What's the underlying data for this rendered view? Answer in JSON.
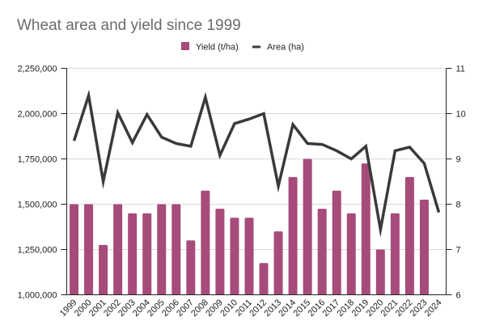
{
  "chart_data": {
    "type": "bar",
    "title": "Wheat area and yield since 1999",
    "categories": [
      "1999",
      "2000",
      "2001",
      "2002",
      "2003",
      "2004",
      "2005",
      "2006",
      "2007",
      "2008",
      "2009",
      "2010",
      "2011",
      "2012",
      "2013",
      "2014",
      "2015",
      "2016",
      "2017",
      "2018",
      "2019",
      "2020",
      "2021",
      "2022",
      "2023",
      "2024"
    ],
    "series": [
      {
        "name": "Yield (t/ha)",
        "type": "bar",
        "axis": "right",
        "color": "#a64b7a",
        "values": [
          8.0,
          8.0,
          7.1,
          8.0,
          7.8,
          7.8,
          8.0,
          8.0,
          7.2,
          8.3,
          7.9,
          7.7,
          7.7,
          6.7,
          7.4,
          8.6,
          9.0,
          7.9,
          8.3,
          7.8,
          8.9,
          7.0,
          7.8,
          8.6,
          8.1,
          null
        ]
      },
      {
        "name": "Area (ha)",
        "type": "line",
        "axis": "left",
        "color": "#3a3a3a",
        "values": [
          1850000,
          2100000,
          1625000,
          2005000,
          1840000,
          1995000,
          1870000,
          1835000,
          1820000,
          2090000,
          1770000,
          1945000,
          1970000,
          2000000,
          1600000,
          1940000,
          1835000,
          1830000,
          1795000,
          1750000,
          1820000,
          1360000,
          1795000,
          1815000,
          1725000,
          1455000
        ]
      }
    ],
    "left_axis": {
      "range": [
        1000000,
        2250000
      ],
      "ticks": [
        "1,000,000",
        "1,250,000",
        "1,500,000",
        "1,750,000",
        "2,000,000",
        "2,250,000"
      ]
    },
    "right_axis": {
      "range": [
        6,
        11
      ],
      "ticks": [
        "6",
        "7",
        "8",
        "9",
        "10",
        "11"
      ]
    },
    "grid": true,
    "legend": "top-center"
  }
}
